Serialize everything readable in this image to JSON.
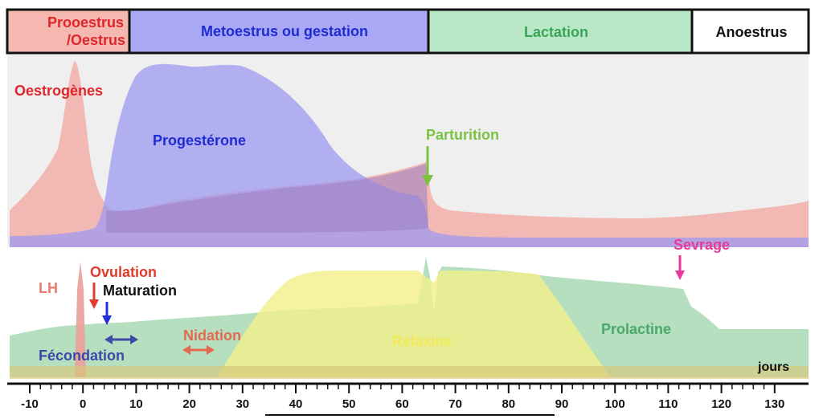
{
  "phases": [
    {
      "label_line1": "Prooestrus",
      "label_line2": "/Oestrus",
      "fill": "#f4b8b0",
      "text_color": "#e0262b"
    },
    {
      "label": "Metoestrus ou gestation",
      "fill": "#a9a8f4",
      "text_color": "#1f2bd6"
    },
    {
      "label": "Lactation",
      "fill": "#b9e8c6",
      "text_color": "#3aa55a"
    },
    {
      "label": "Anoestrus",
      "fill": "#ffffff",
      "text_color": "#111111"
    }
  ],
  "labels": {
    "oestrogenes": "Oestrogènes",
    "progesterone": "Progestérone",
    "parturition": "Parturition",
    "sevrage": "Sevrage",
    "lh": "LH",
    "ovulation": "Ovulation",
    "maturation": "Maturation",
    "fecondation": "Fécondation",
    "nidation": "Nidation",
    "relaxine": "Relaxine",
    "prolactine": "Prolactine",
    "jours": "jours"
  },
  "colors": {
    "oestrogenes": "#e0262b",
    "progesterone": "#1f2bd6",
    "parturition": "#7cc242",
    "sevrage": "#e83a9a",
    "lh": "#e87a74",
    "ovulation": "#e23a2c",
    "maturation": "#111111",
    "fecondation": "#3d4aa8",
    "nidation": "#e36a4f",
    "relaxine": "#f1ea55",
    "prolactine": "#4aa86a"
  },
  "axis": {
    "ticks": [
      "-10",
      "0",
      "10",
      "20",
      "30",
      "40",
      "50",
      "60",
      "70",
      "80",
      "90",
      "100",
      "110",
      "120",
      "130"
    ]
  }
}
